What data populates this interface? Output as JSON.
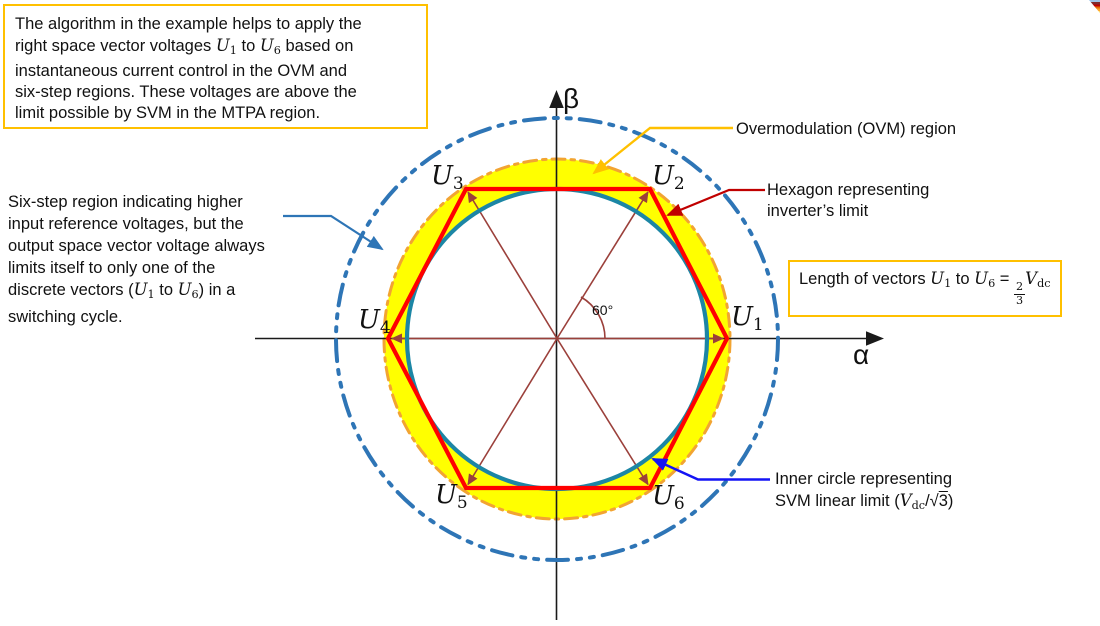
{
  "colors": {
    "accent_box_border": "#FFC000",
    "hexagon_red": "#FF0000",
    "inner_circle_teal": "#1C86A5",
    "outer_circle_blue": "#2E75B6",
    "ovm_fill_yellow": "#FFFF00",
    "ovm_dash_orange": "#F2A432",
    "vector_maroon": "#9B403B",
    "leader_ovm_orange": "#FFC000",
    "leader_hexagon_red": "#C00000",
    "leader_sixstep_blue": "#2E75B6",
    "leader_inner_blue": "#1414F5",
    "axis_black": "#1A1A1A"
  },
  "decoration": {
    "corner_colors": [
      "#9DC3E6",
      "#822A2A",
      "#C00000",
      "#E36C09",
      "#FFA62B",
      "#FFD960"
    ]
  },
  "intro_box": {
    "rich": [
      {
        "t": "The algorithm in the example helps to apply the"
      },
      {
        "br": true
      },
      {
        "t": "right space vector voltages "
      },
      {
        "t": "U",
        "s": "mi"
      },
      {
        "t": "1",
        "s": "msub"
      },
      {
        "t": " to "
      },
      {
        "t": "U",
        "s": "mi"
      },
      {
        "t": "6",
        "s": "msub"
      },
      {
        "t": " based on"
      },
      {
        "br": true
      },
      {
        "t": "instantaneous current control in the OVM and"
      },
      {
        "br": true
      },
      {
        "t": "six-step regions. These voltages are above the"
      },
      {
        "br": true
      },
      {
        "t": "limit possible by SVM in the MTPA region."
      }
    ]
  },
  "sixstep_note": {
    "rich": [
      {
        "t": "Six-step region indicating higher"
      },
      {
        "br": true
      },
      {
        "t": "input reference voltages, but the"
      },
      {
        "br": true
      },
      {
        "t": "output space vector voltage always"
      },
      {
        "br": true
      },
      {
        "t": "limits itself to only one of the"
      },
      {
        "br": true
      },
      {
        "t": "discrete vectors ("
      },
      {
        "t": "U",
        "s": "mi"
      },
      {
        "t": "1",
        "s": "msub"
      },
      {
        "t": " to "
      },
      {
        "t": "U",
        "s": "mi"
      },
      {
        "t": "6",
        "s": "msub"
      },
      {
        "t": ") in a"
      },
      {
        "br": true
      },
      {
        "t": "switching cycle."
      }
    ]
  },
  "annotations": {
    "ovm_label": "Overmodulation (OVM) region",
    "hexagon": {
      "rich": [
        {
          "t": "Hexagon representing"
        },
        {
          "br": true
        },
        {
          "t": "inverter’s limit"
        }
      ]
    },
    "length_box": {
      "rich": [
        {
          "t": "Length of vectors "
        },
        {
          "t": "U",
          "s": "mi"
        },
        {
          "t": "1",
          "s": "msub"
        },
        {
          "t": " to "
        },
        {
          "t": "U",
          "s": "mi"
        },
        {
          "t": "6",
          "s": "msub"
        },
        {
          "t": " = "
        },
        {
          "t": "2/3",
          "s": "frac"
        },
        {
          "t": "V",
          "s": "mi"
        },
        {
          "t": "dc",
          "s": "msub"
        }
      ]
    },
    "inner_circle": {
      "rich": [
        {
          "t": "Inner circle representing"
        },
        {
          "br": true
        },
        {
          "t": "SVM linear limit ("
        },
        {
          "t": "V",
          "s": "mi"
        },
        {
          "t": "dc",
          "s": "msub"
        },
        {
          "t": "/√"
        },
        {
          "t": "3",
          "s": "ovl"
        },
        {
          "t": ")"
        }
      ]
    }
  },
  "diagram": {
    "alpha": "α",
    "beta": "β",
    "angle_label": "60°",
    "vertices": [
      {
        "id": "U1",
        "rich": [
          {
            "t": "U",
            "s": "mi"
          },
          {
            "t": "1",
            "s": "msub"
          }
        ]
      },
      {
        "id": "U2",
        "rich": [
          {
            "t": "U",
            "s": "mi"
          },
          {
            "t": "2",
            "s": "msub"
          }
        ]
      },
      {
        "id": "U3",
        "rich": [
          {
            "t": "U",
            "s": "mi"
          },
          {
            "t": "3",
            "s": "msub"
          }
        ]
      },
      {
        "id": "U4",
        "rich": [
          {
            "t": "U",
            "s": "mi"
          },
          {
            "t": "4",
            "s": "msub"
          }
        ]
      },
      {
        "id": "U5",
        "rich": [
          {
            "t": "U",
            "s": "mi"
          },
          {
            "t": "5",
            "s": "msub"
          }
        ]
      },
      {
        "id": "U6",
        "rich": [
          {
            "t": "U",
            "s": "mi"
          },
          {
            "t": "6",
            "s": "msub"
          }
        ]
      }
    ]
  }
}
